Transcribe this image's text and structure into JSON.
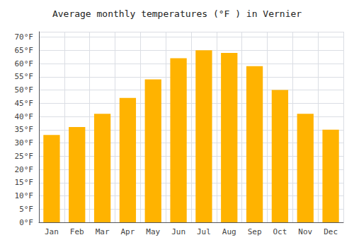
{
  "chart_data": {
    "type": "bar",
    "title": "Average monthly temperatures (°F ) in Vernier",
    "categories": [
      "Jan",
      "Feb",
      "Mar",
      "Apr",
      "May",
      "Jun",
      "Jul",
      "Aug",
      "Sep",
      "Oct",
      "Nov",
      "Dec"
    ],
    "values": [
      33,
      36,
      41,
      47,
      54,
      62,
      65,
      64,
      59,
      50,
      41,
      35
    ],
    "color": "#FFB300",
    "ylim": [
      0,
      72
    ],
    "yticks": [
      {
        "value": 0,
        "label": "0°F"
      },
      {
        "value": 5,
        "label": "5°F"
      },
      {
        "value": 10,
        "label": "10°F"
      },
      {
        "value": 15,
        "label": "15°F"
      },
      {
        "value": 20,
        "label": "20°F"
      },
      {
        "value": 25,
        "label": "25°F"
      },
      {
        "value": 30,
        "label": "30°F"
      },
      {
        "value": 35,
        "label": "35°F"
      },
      {
        "value": 40,
        "label": "40°F"
      },
      {
        "value": 45,
        "label": "45°F"
      },
      {
        "value": 50,
        "label": "50°F"
      },
      {
        "value": 55,
        "label": "55°F"
      },
      {
        "value": 60,
        "label": "60°F"
      },
      {
        "value": 65,
        "label": "65°F"
      },
      {
        "value": 70,
        "label": "70°F"
      }
    ],
    "grid": true
  }
}
